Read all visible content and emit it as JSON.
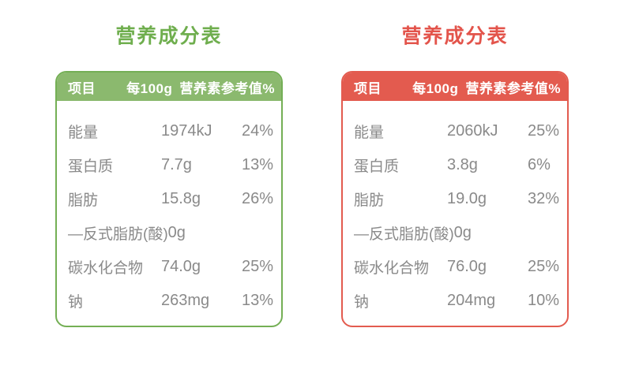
{
  "chart_data": [
    {
      "type": "table",
      "title": "营养成分表",
      "accent": "#8BB96E",
      "border": "#74AF55",
      "title_color": "#6FAE4E",
      "columns": [
        "项目",
        "每100g",
        "营养素参考值%"
      ],
      "rows": [
        [
          "能量",
          "1974kJ",
          "24%"
        ],
        [
          "蛋白质",
          "7.7g",
          "13%"
        ],
        [
          "脂肪",
          "15.8g",
          "26%"
        ],
        [
          "—反式脂肪(酸)",
          "0g",
          ""
        ],
        [
          "碳水化合物",
          "74.0g",
          "25%"
        ],
        [
          "钠",
          "263mg",
          "13%"
        ]
      ]
    },
    {
      "type": "table",
      "title": "营养成分表",
      "accent": "#E35B4F",
      "border": "#E35B4F",
      "title_color": "#E3544B",
      "columns": [
        "项目",
        "每100g",
        "营养素参考值%"
      ],
      "rows": [
        [
          "能量",
          "2060kJ",
          "25%"
        ],
        [
          "蛋白质",
          "3.8g",
          "6%"
        ],
        [
          "脂肪",
          "19.0g",
          "32%"
        ],
        [
          "—反式脂肪(酸)",
          "0g",
          ""
        ],
        [
          "碳水化合物",
          "76.0g",
          "25%"
        ],
        [
          "钠",
          "204mg",
          "10%"
        ]
      ]
    }
  ]
}
